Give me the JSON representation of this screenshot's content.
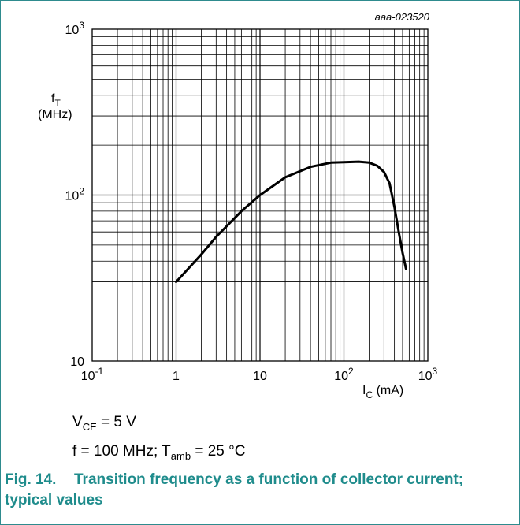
{
  "chart_data": {
    "type": "line",
    "title": "",
    "figure_id": "aaa-023520",
    "x_scale": "log",
    "y_scale": "log",
    "xlim": [
      0.1,
      1000
    ],
    "ylim": [
      10,
      1000
    ],
    "x_ticks": [
      {
        "base": "10",
        "exp": "-1"
      },
      {
        "base": "1",
        "exp": ""
      },
      {
        "base": "10",
        "exp": ""
      },
      {
        "base": "10",
        "exp": "2"
      },
      {
        "base": "10",
        "exp": "3"
      }
    ],
    "y_ticks": [
      {
        "base": "10",
        "exp": ""
      },
      {
        "base": "10",
        "exp": "2"
      },
      {
        "base": "10",
        "exp": "3"
      }
    ],
    "ylabel": {
      "main": "f",
      "sub": "T",
      "unit": "(MHz)"
    },
    "xlabel": {
      "main": "I",
      "sub": "C",
      "unit": " (mA)"
    },
    "grid": true,
    "series": [
      {
        "x": [
          1,
          2,
          3,
          6,
          10,
          20,
          40,
          70,
          100,
          150,
          200,
          250,
          300,
          350,
          400,
          450,
          500,
          550
        ],
        "y": [
          30,
          44,
          56,
          80,
          100,
          128,
          148,
          157,
          158,
          159,
          157,
          150,
          138,
          118,
          85,
          60,
          45,
          36
        ]
      }
    ]
  },
  "conditions": {
    "line1": {
      "a": "V",
      "a_sub": "CE",
      "b": " = 5 V"
    },
    "line2": {
      "a": "f = 100 MHz; T",
      "a_sub": "amb",
      "b": " = 25 °C"
    }
  },
  "caption": {
    "label": "Fig. 14.",
    "text": "Transition frequency as a function of collector current; typical values"
  },
  "colors": {
    "caption": "#1f8c8c",
    "border": "#2e8b8e"
  }
}
